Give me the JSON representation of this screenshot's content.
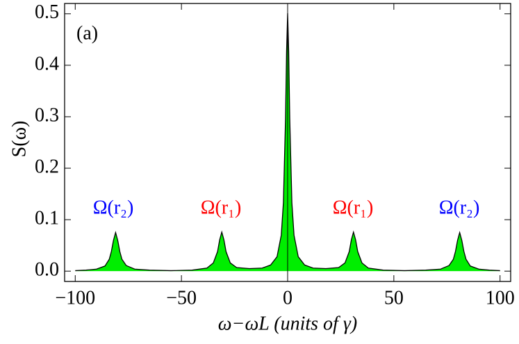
{
  "chart_data": {
    "type": "area",
    "ylabel": "S(ω)",
    "xlabel": "ω−ωL (units of γ)",
    "annotations": [
      {
        "text": "(a)",
        "color": "#000000"
      },
      {
        "text": "Ω(r₂)",
        "color": "#0000ff"
      },
      {
        "text": "Ω(r₁)",
        "color": "#ff0000"
      },
      {
        "text": "Ω(r₁)",
        "color": "#ff0000"
      },
      {
        "text": "Ω(r₂)",
        "color": "#0000ff"
      }
    ],
    "x": [
      -100,
      -95,
      -90,
      -86,
      -84,
      -83,
      -82,
      -81,
      -80,
      -79,
      -78,
      -76,
      -72,
      -65,
      -55,
      -45,
      -38,
      -35,
      -33,
      -32,
      -31,
      -30,
      -29,
      -27,
      -24,
      -18,
      -12,
      -8,
      -5,
      -3,
      -2,
      -1,
      -0.5,
      0,
      0.5,
      1,
      2,
      3,
      5,
      8,
      12,
      18,
      24,
      27,
      29,
      30,
      31,
      32,
      33,
      35,
      38,
      45,
      55,
      65,
      72,
      76,
      78,
      79,
      80,
      81,
      82,
      83,
      84,
      86,
      90,
      95,
      100
    ],
    "values": [
      0.001,
      0.002,
      0.004,
      0.01,
      0.023,
      0.038,
      0.06,
      0.075,
      0.06,
      0.038,
      0.023,
      0.011,
      0.004,
      0.002,
      0.001,
      0.002,
      0.006,
      0.016,
      0.038,
      0.061,
      0.076,
      0.061,
      0.038,
      0.016,
      0.007,
      0.005,
      0.006,
      0.012,
      0.028,
      0.07,
      0.133,
      0.296,
      0.427,
      0.501,
      0.427,
      0.296,
      0.133,
      0.07,
      0.028,
      0.012,
      0.006,
      0.005,
      0.007,
      0.016,
      0.038,
      0.061,
      0.076,
      0.061,
      0.038,
      0.016,
      0.006,
      0.002,
      0.001,
      0.002,
      0.004,
      0.011,
      0.023,
      0.038,
      0.06,
      0.075,
      0.06,
      0.038,
      0.023,
      0.01,
      0.004,
      0.002,
      0.001
    ],
    "color": "#00ee00",
    "line_color": "#000000",
    "xlim": [
      -105,
      105
    ],
    "ylim": [
      -0.02,
      0.52
    ],
    "xticks": [
      {
        "value": -100,
        "label": "−100"
      },
      {
        "value": -50,
        "label": "−50"
      },
      0,
      50,
      100
    ],
    "yticks": [
      {
        "value": 0,
        "label": "0.0"
      },
      {
        "value": 0.1,
        "label": "0.1"
      },
      {
        "value": 0.2,
        "label": "0.2"
      },
      {
        "value": 0.3,
        "label": "0.3"
      },
      {
        "value": 0.4,
        "label": "0.4"
      },
      {
        "value": 0.5,
        "label": "0.5"
      }
    ]
  }
}
